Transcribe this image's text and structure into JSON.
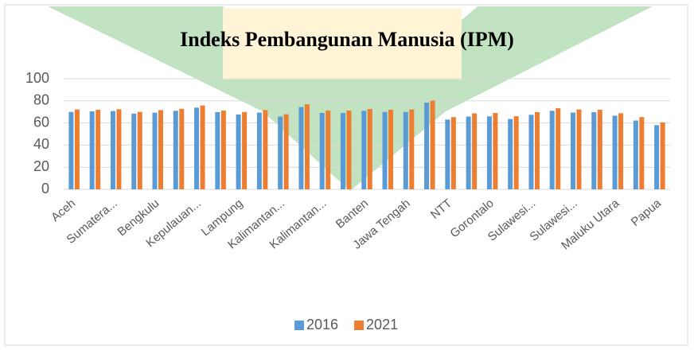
{
  "chart_data": {
    "type": "bar",
    "title": "Indeks Pembangunan Manusia (IPM)",
    "categories": [
      "Aceh",
      null,
      "Sumatera...",
      null,
      "Bengkulu",
      null,
      "Kepulauan...",
      null,
      "Lampung",
      null,
      "Kalimantan...",
      null,
      "Kalimantan...",
      null,
      "Banten",
      null,
      "Jawa Tengah",
      null,
      "NTT",
      null,
      "Gorontalo",
      null,
      "Sulawesi...",
      null,
      "Sulawesi...",
      null,
      "Maluku Utara",
      null,
      "Papua"
    ],
    "series": [
      {
        "name": "2016",
        "color": "#5b9bd5",
        "values": [
          70.0,
          70.5,
          70.8,
          68.5,
          69.3,
          71.0,
          73.9,
          69.8,
          67.7,
          69.4,
          65.9,
          74.4,
          69.1,
          69.1,
          71.0,
          70.0,
          70.0,
          78.4,
          63.1,
          65.8,
          66.0,
          63.6,
          67.4,
          71.0,
          69.4,
          69.8,
          66.6,
          62.2,
          58.0
        ]
      },
      {
        "name": "2021",
        "color": "#ed7d31",
        "values": [
          72.2,
          72.0,
          72.4,
          70.0,
          71.6,
          72.8,
          75.8,
          71.2,
          69.9,
          71.7,
          67.9,
          76.9,
          71.2,
          71.2,
          72.7,
          72.0,
          72.2,
          80.2,
          65.3,
          68.7,
          69.0,
          66.1,
          69.8,
          73.3,
          72.2,
          72.0,
          68.8,
          65.3,
          60.6
        ]
      }
    ],
    "ylim": [
      0,
      100
    ],
    "yticks": [
      0,
      20,
      40,
      60,
      80,
      100
    ],
    "grid": true,
    "legend": "bottom"
  }
}
